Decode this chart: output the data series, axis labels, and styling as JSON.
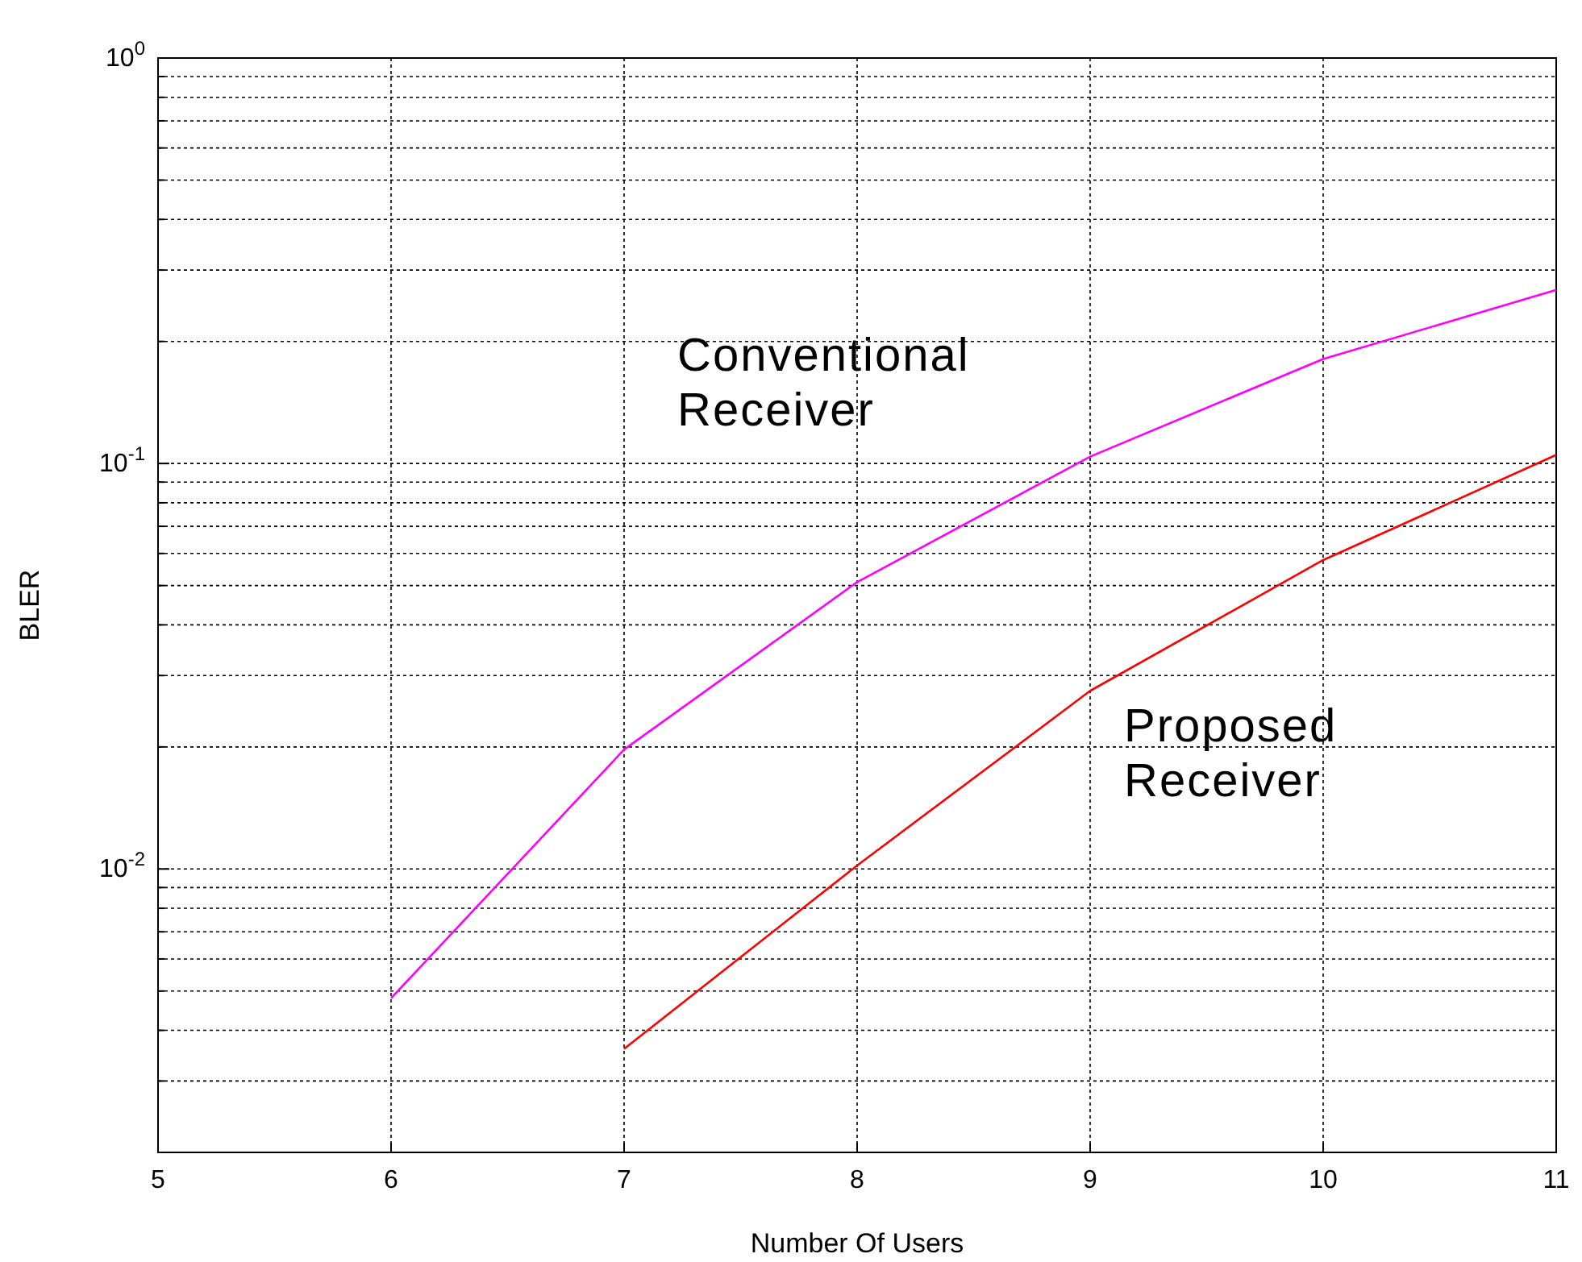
{
  "chart_data": {
    "type": "line",
    "xlabel": "Number Of Users",
    "ylabel": "BLER",
    "log": "y",
    "grid": true,
    "marker": "none",
    "line_style": "solid",
    "xlim": [
      5,
      11
    ],
    "xticks": [
      5,
      6,
      7,
      8,
      9,
      10,
      11
    ],
    "ylim": [
      0.002,
      1
    ],
    "yticks": [
      {
        "value": 0.002,
        "label": null
      },
      {
        "value": 0.003,
        "label": null
      },
      {
        "value": 0.004,
        "label": null
      },
      {
        "value": 0.005,
        "label": null
      },
      {
        "value": 0.006,
        "label": null
      },
      {
        "value": 0.007,
        "label": null
      },
      {
        "value": 0.008,
        "label": null
      },
      {
        "value": 0.009,
        "label": null
      },
      {
        "value": 0.01,
        "label": "10$^{-2}$"
      },
      {
        "value": 0.02,
        "label": null
      },
      {
        "value": 0.03,
        "label": null
      },
      {
        "value": 0.04,
        "label": null
      },
      {
        "value": 0.05,
        "label": null
      },
      {
        "value": 0.06,
        "label": null
      },
      {
        "value": 0.07,
        "label": null
      },
      {
        "value": 0.08,
        "label": null
      },
      {
        "value": 0.09,
        "label": null
      },
      {
        "value": 0.1,
        "label": "10$^{-1}$"
      },
      {
        "value": 0.2,
        "label": null
      },
      {
        "value": 0.3,
        "label": null
      },
      {
        "value": 0.4,
        "label": null
      },
      {
        "value": 0.5,
        "label": null
      },
      {
        "value": 0.6,
        "label": null
      },
      {
        "value": 0.7,
        "label": null
      },
      {
        "value": 0.8,
        "label": null
      },
      {
        "value": 0.9,
        "label": null
      },
      {
        "value": 1,
        "label": "10$^{0}$"
      }
    ],
    "series": [
      {
        "color": "#ff00ff",
        "x": [
          6,
          7,
          8,
          9,
          10,
          11
        ],
        "values": [
          0.0048,
          0.0197,
          0.051,
          0.104,
          0.181,
          0.268
        ]
      },
      {
        "color": "#ff0000",
        "x": [
          7,
          8,
          9,
          10,
          11
        ],
        "values": [
          0.0036,
          0.0102,
          0.0275,
          0.0578,
          0.105
        ]
      }
    ],
    "annotations": [
      "Conventional\nReceiver",
      "Proposed\nReceiver"
    ]
  }
}
